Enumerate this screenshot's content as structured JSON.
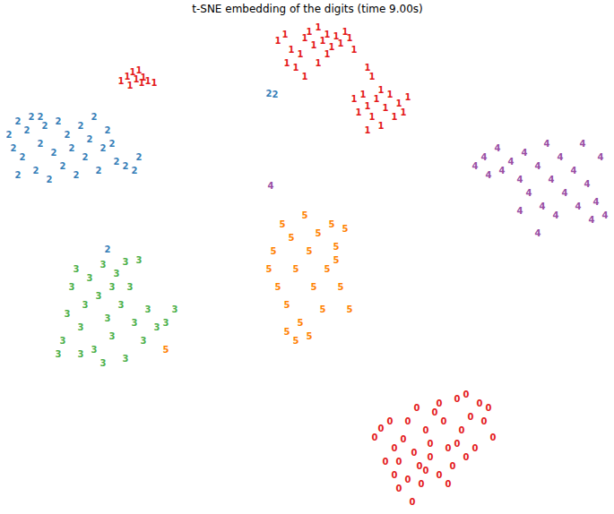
{
  "chart_data": {
    "type": "scatter",
    "title": "t-SNE embedding of the digits (time 9.00s)",
    "xlim": [
      0,
      672
    ],
    "ylim": [
      0,
      544
    ],
    "xticks": [],
    "yticks": [],
    "grid": false,
    "tick_labels": false,
    "marker": "label",
    "series": [
      {
        "name": "0",
        "color": "#e41a1c",
        "x": [
          411,
          418,
          428,
          433,
          438,
          443,
          448,
          455,
          461,
          468,
          473,
          478,
          483,
          488,
          493,
          498,
          503,
          508,
          513,
          518,
          523,
          528,
          533,
          538,
          543,
          448,
          433,
          438,
          463,
          473,
          483,
          493,
          458,
          423,
          513,
          503,
          453,
          468
        ],
        "y": [
          78,
          88,
          96,
          66,
          51,
          76,
          96,
          61,
          46,
          86,
          71,
          106,
          116,
          96,
          66,
          46,
          121,
          86,
          126,
          101,
          66,
          116,
          96,
          111,
          78,
          31,
          36,
          21,
          26,
          56,
          36,
          26,
          111,
          51,
          56,
          71,
          6,
          41
        ]
      },
      {
        "name": "1",
        "color": "#e41a1c",
        "x": [
          128,
          135,
          141,
          145,
          151,
          158,
          165,
          138,
          148,
          153,
          303,
          311,
          318,
          328,
          333,
          338,
          343,
          348,
          353,
          358,
          363,
          368,
          373,
          378,
          383,
          388,
          323,
          333,
          313,
          403,
          408,
          358,
          348,
          388,
          398,
          403,
          408,
          413,
          418,
          423,
          428,
          433,
          438,
          443,
          448,
          403,
          418,
          393
        ],
        "y": [
          476,
          481,
          486,
          478,
          474,
          476,
          474,
          471,
          488,
          480,
          521,
          528,
          511,
          506,
          524,
          531,
          516,
          536,
          521,
          528,
          514,
          526,
          518,
          531,
          524,
          511,
          491,
          481,
          496,
          491,
          481,
          506,
          496,
          456,
          461,
          448,
          436,
          456,
          426,
          446,
          461,
          436,
          451,
          441,
          458,
          421,
          466,
          441
        ]
      },
      {
        "name": "2",
        "color": "#377eb8",
        "x": [
          3,
          8,
          13,
          18,
          23,
          28,
          33,
          38,
          43,
          48,
          53,
          58,
          63,
          68,
          73,
          78,
          83,
          88,
          93,
          98,
          103,
          108,
          113,
          118,
          123,
          133,
          143,
          148,
          13,
          38,
          293,
          300,
          113
        ],
        "y": [
          416,
          401,
          431,
          391,
          421,
          436,
          376,
          406,
          426,
          366,
          396,
          431,
          381,
          416,
          401,
          371,
          426,
          391,
          411,
          436,
          376,
          401,
          421,
          406,
          386,
          381,
          376,
          391,
          371,
          436,
          462,
          461,
          288
        ]
      },
      {
        "name": "3",
        "color": "#4daf4a",
        "x": [
          58,
          63,
          68,
          73,
          78,
          83,
          88,
          93,
          98,
          103,
          108,
          113,
          118,
          123,
          128,
          133,
          138,
          143,
          148,
          153,
          158,
          168,
          178,
          188,
          108,
          83,
          118,
          133
        ],
        "y": [
          171,
          186,
          216,
          246,
          266,
          201,
          226,
          256,
          176,
          236,
          271,
          211,
          191,
          261,
          226,
          166,
          246,
          206,
          276,
          186,
          221,
          201,
          206,
          221,
          161,
          171,
          246,
          274
        ]
      },
      {
        "name": "4",
        "color": "#984ea3",
        "x": [
          523,
          533,
          538,
          548,
          553,
          563,
          573,
          578,
          583,
          593,
          598,
          603,
          608,
          613,
          618,
          623,
          633,
          638,
          643,
          648,
          653,
          658,
          663,
          668,
          593,
          573,
          295
        ],
        "y": [
          381,
          391,
          371,
          401,
          376,
          386,
          366,
          396,
          351,
          381,
          336,
          406,
          366,
          326,
          391,
          351,
          376,
          336,
          406,
          361,
          321,
          341,
          391,
          326,
          306,
          331,
          359
        ]
      },
      {
        "name": "5",
        "color": "#ff7f00",
        "x": [
          293,
          298,
          303,
          308,
          313,
          318,
          323,
          328,
          333,
          338,
          343,
          348,
          353,
          358,
          363,
          368,
          373,
          378,
          383,
          323,
          338,
          313,
          368,
          178
        ],
        "y": [
          266,
          286,
          246,
          316,
          226,
          301,
          266,
          206,
          326,
          286,
          246,
          306,
          221,
          266,
          316,
          291,
          246,
          311,
          221,
          186,
          191,
          196,
          276,
          176
        ]
      }
    ]
  }
}
